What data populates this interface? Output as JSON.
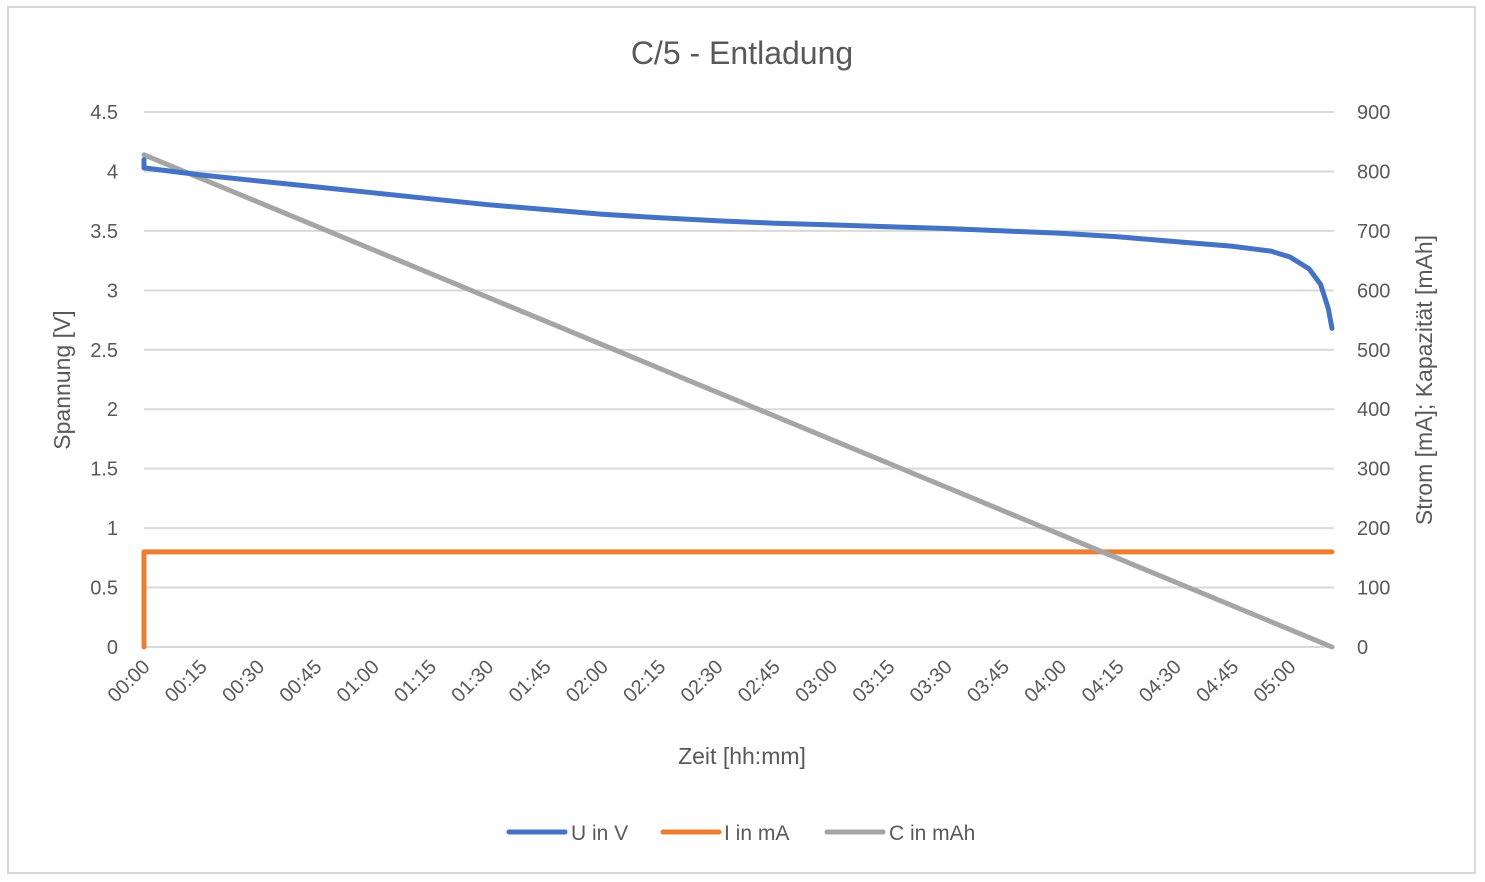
{
  "chart_data": {
    "type": "line",
    "title": "C/5 - Entladung",
    "xlabel": "Zeit [hh:mm]",
    "ylabel": "Spannung [V]",
    "y2label": "Strom [mA]; Kapazität [mAh]",
    "ylim": [
      0,
      4.5
    ],
    "y2lim": [
      0,
      900
    ],
    "yticks": [
      "0",
      "0.5",
      "1",
      "1.5",
      "2",
      "2.5",
      "3",
      "3.5",
      "4",
      "4.5"
    ],
    "y2ticks": [
      "0",
      "100",
      "200",
      "300",
      "400",
      "500",
      "600",
      "700",
      "800",
      "900"
    ],
    "xticks": [
      "00:00",
      "00:15",
      "00:30",
      "00:45",
      "01:00",
      "01:15",
      "01:30",
      "01:45",
      "02:00",
      "02:15",
      "02:30",
      "02:45",
      "03:00",
      "03:15",
      "03:30",
      "03:45",
      "04:00",
      "04:15",
      "04:30",
      "04:45",
      "05:00"
    ],
    "grid": true,
    "legend_position": "bottom",
    "series": [
      {
        "name": "U in V",
        "axis": "left",
        "color": "#4472c4",
        "x": [
          "00:00",
          "00:00",
          "00:15",
          "00:30",
          "00:45",
          "01:00",
          "01:15",
          "01:30",
          "01:45",
          "02:00",
          "02:15",
          "02:30",
          "02:45",
          "03:00",
          "03:15",
          "03:30",
          "03:45",
          "04:00",
          "04:15",
          "04:30",
          "04:45",
          "04:55",
          "05:00",
          "05:05",
          "05:08",
          "05:10",
          "05:11"
        ],
        "values": [
          4.1,
          4.03,
          3.97,
          3.92,
          3.87,
          3.82,
          3.77,
          3.72,
          3.68,
          3.64,
          3.61,
          3.585,
          3.565,
          3.55,
          3.535,
          3.52,
          3.5,
          3.48,
          3.45,
          3.41,
          3.37,
          3.33,
          3.28,
          3.18,
          3.05,
          2.85,
          2.68
        ]
      },
      {
        "name": "I in mA",
        "axis": "right",
        "color": "#ed7d31",
        "x": [
          "00:00",
          "00:00",
          "00:00",
          "05:11"
        ],
        "values": [
          0,
          155,
          160,
          160
        ]
      },
      {
        "name": "C in mAh",
        "axis": "right",
        "color": "#a5a5a5",
        "x": [
          "00:00",
          "05:11"
        ],
        "values": [
          828,
          0
        ]
      }
    ]
  }
}
